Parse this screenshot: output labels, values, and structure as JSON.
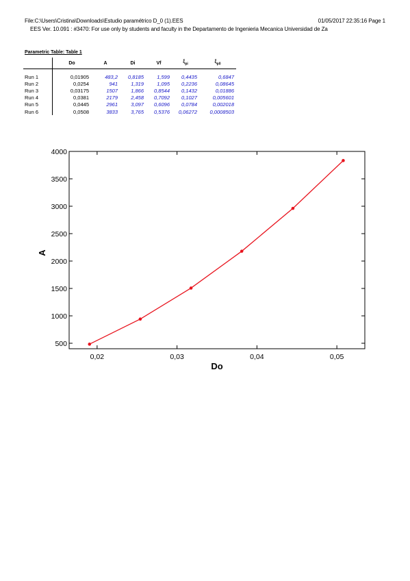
{
  "header": {
    "file_line": "File:C:\\Users\\Cristina\\Downloads\\Estudio paramétrico D_0 (1).EES",
    "date_line": "01/05/2017 22:35:16  Page 1",
    "version_line": "EES Ver. 10.091 : #3470:  For use only by students and faculty in the  Departamento de  Ingenieria Mecanica Universidad de Za"
  },
  "table": {
    "title": "Parametric Table: Table 1",
    "columns": [
      {
        "name": "Do",
        "sub": ""
      },
      {
        "name": "A",
        "sub": ""
      },
      {
        "name": "Di",
        "sub": ""
      },
      {
        "name": "Vf",
        "sub": ""
      },
      {
        "name": "ξ",
        "sub": "pi"
      },
      {
        "name": "ξ",
        "sub": "p0"
      }
    ],
    "rows": [
      {
        "run": "Run 1",
        "cells": [
          "0,01905",
          "483,2",
          "0,8185",
          "1,599",
          "0,4435",
          "0,6847"
        ]
      },
      {
        "run": "Run 2",
        "cells": [
          "0,0254",
          "941",
          "1,319",
          "1,095",
          "0,2236",
          "0,08645"
        ]
      },
      {
        "run": "Run 3",
        "cells": [
          "0,03175",
          "1507",
          "1,866",
          "0,8544",
          "0,1432",
          "0,01886"
        ]
      },
      {
        "run": "Run 4",
        "cells": [
          "0,0381",
          "2179",
          "2,458",
          "0,7092",
          "0,1027",
          "0,005601"
        ]
      },
      {
        "run": "Run 5",
        "cells": [
          "0,0445",
          "2961",
          "3,097",
          "0,6096",
          "0,0784",
          "0,002018"
        ]
      },
      {
        "run": "Run 6",
        "cells": [
          "0,0508",
          "3833",
          "3,765",
          "0,5376",
          "0,06272",
          "0,0008503"
        ]
      }
    ]
  },
  "chart_data": {
    "type": "line",
    "x": [
      0.01905,
      0.0254,
      0.03175,
      0.0381,
      0.0445,
      0.0508
    ],
    "values": [
      483.2,
      941,
      1507,
      2179,
      2961,
      3833
    ],
    "xlabel": "Do",
    "ylabel": "A",
    "xlim": [
      0.0165,
      0.0535
    ],
    "ylim": [
      400,
      4000
    ],
    "xticks": [
      0.02,
      0.03,
      0.04,
      0.05
    ],
    "xtick_labels": [
      "0,02",
      "0,03",
      "0,04",
      "0,05"
    ],
    "yticks": [
      500,
      1000,
      1500,
      2000,
      2500,
      3000,
      3500,
      4000
    ],
    "ytick_labels": [
      "500",
      "1000",
      "1500",
      "2000",
      "2500",
      "3000",
      "3500",
      "4000"
    ],
    "grid": false,
    "line_color": "#e8141e"
  },
  "colors": {
    "computed_values": "#1515c8",
    "series": "#e8141e"
  }
}
